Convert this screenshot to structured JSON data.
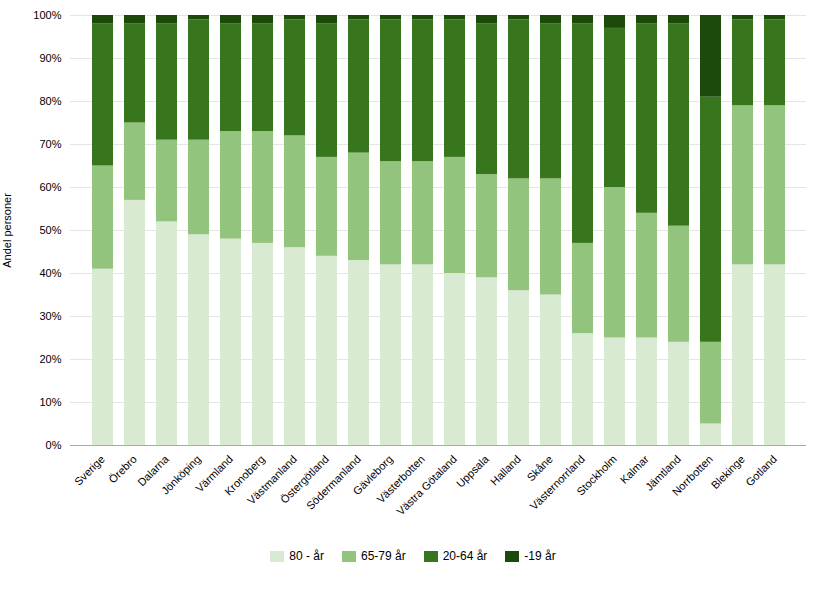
{
  "chart_data": {
    "type": "bar",
    "stacked": true,
    "categories": [
      "Sverige",
      "Örebro",
      "Dalarna",
      "Jönköping",
      "Värmland",
      "Kronoberg",
      "Västmanland",
      "Östergötland",
      "Södermanland",
      "Gävleborg",
      "Västerbotten",
      "Västra Götaland",
      "Uppsala",
      "Halland",
      "Skåne",
      "Västernorrland",
      "Stockholm",
      "Kalmar",
      "Jämtland",
      "Norrbotten",
      "Blekinge",
      "Gotland"
    ],
    "series": [
      {
        "name": "80 - år",
        "color": "#d9ead3",
        "values": [
          41,
          57,
          52,
          49,
          48,
          47,
          46,
          44,
          43,
          42,
          42,
          40,
          39,
          36,
          35,
          26,
          25,
          25,
          24,
          5,
          42,
          42
        ]
      },
      {
        "name": "65-79 år",
        "color": "#93c47d",
        "values": [
          24,
          18,
          19,
          22,
          25,
          26,
          26,
          23,
          25,
          24,
          24,
          27,
          24,
          26,
          27,
          21,
          35,
          29,
          27,
          19,
          37,
          37
        ]
      },
      {
        "name": "20-64 år",
        "color": "#38761d",
        "values": [
          33,
          23,
          27,
          28,
          25,
          25,
          27,
          31,
          31,
          33,
          33,
          32,
          35,
          37,
          36,
          51,
          37,
          44,
          47,
          57,
          20,
          20
        ]
      },
      {
        "name": "-19 år",
        "color": "#1c4a0a",
        "values": [
          2,
          2,
          2,
          1,
          2,
          2,
          1,
          2,
          1,
          1,
          1,
          1,
          2,
          1,
          2,
          2,
          3,
          2,
          2,
          19,
          1,
          1
        ]
      }
    ],
    "ylabel": "Andel personer",
    "ylim": [
      0,
      100
    ],
    "yticks": [
      {
        "value": 0,
        "label": "0%"
      },
      {
        "value": 10,
        "label": "10%"
      },
      {
        "value": 20,
        "label": "20%"
      },
      {
        "value": 30,
        "label": "30%"
      },
      {
        "value": 40,
        "label": "40%"
      },
      {
        "value": 50,
        "label": "50%"
      },
      {
        "value": 60,
        "label": "60%"
      },
      {
        "value": 70,
        "label": "70%"
      },
      {
        "value": 80,
        "label": "80%"
      },
      {
        "value": 90,
        "label": "90%"
      },
      {
        "value": 100,
        "label": "100%"
      }
    ],
    "grid": true,
    "legend": "bottom"
  }
}
